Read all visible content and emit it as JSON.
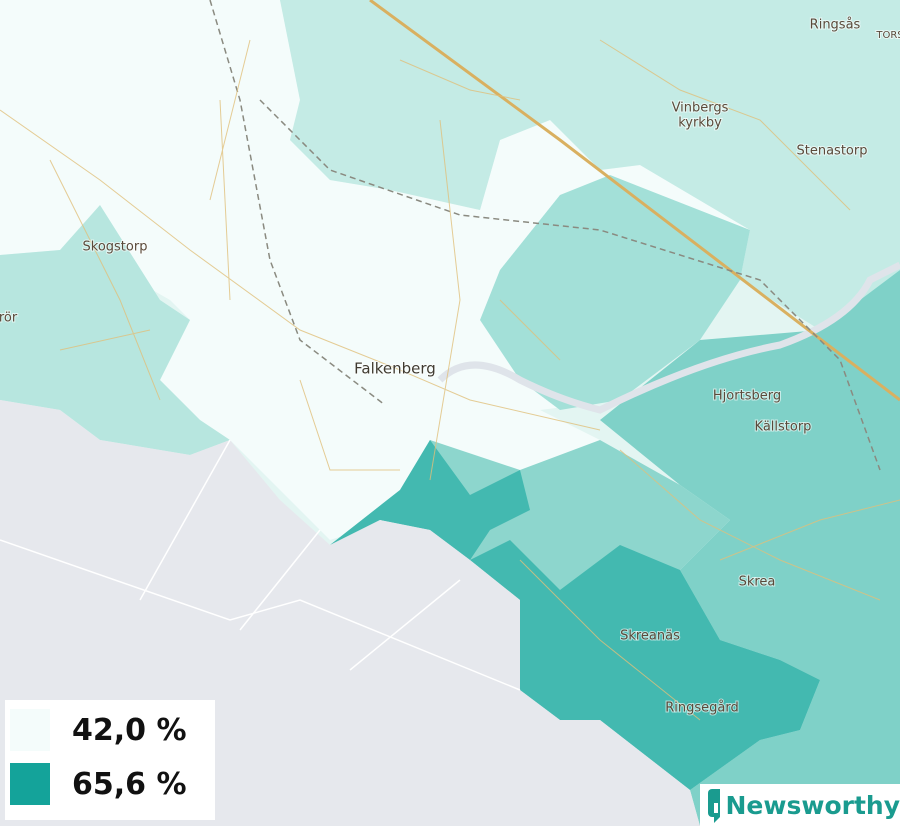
{
  "map": {
    "places": [
      "Ringsås",
      "TORS",
      "Vinbergs",
      "kyrkby",
      "Stenastorp",
      "Skogstorp",
      "rör",
      "Falkenberg",
      "Hjortsberg",
      "Källstorp",
      "Skrea",
      "Skreanäs",
      "Ringsegård"
    ]
  },
  "legend": {
    "items": [
      "42,0 %",
      "65,6 %"
    ]
  },
  "brand": "Newsworthy"
}
